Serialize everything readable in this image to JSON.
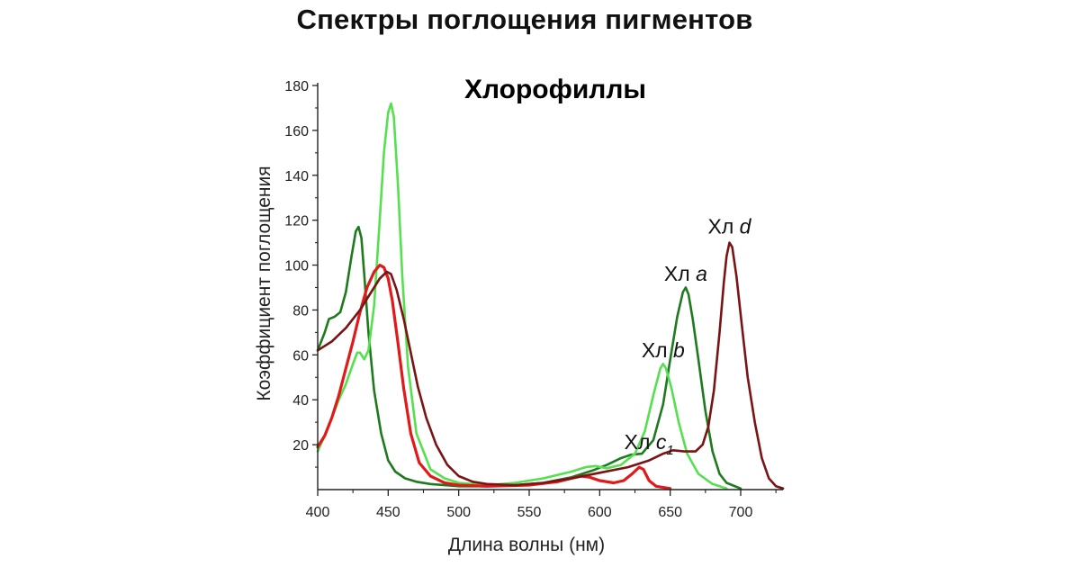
{
  "page_title": "Спектры поглощения пигментов",
  "chart_data": {
    "type": "line",
    "title": "Хлорофиллы",
    "xlabel": "Длина волны (нм)",
    "ylabel": "Коэффициент поглощения",
    "xlim": [
      400,
      730
    ],
    "ylim": [
      0,
      180
    ],
    "xticks": [
      "400",
      "450",
      "500",
      "550",
      "600",
      "650",
      "700"
    ],
    "yticks": [
      "20",
      "40",
      "60",
      "80",
      "100",
      "120",
      "140",
      "160",
      "180"
    ],
    "grid": false,
    "series": [
      {
        "name": "Хл a",
        "color": "#1e7a1e",
        "points": [
          [
            400,
            62
          ],
          [
            405,
            70
          ],
          [
            408,
            76
          ],
          [
            412,
            77
          ],
          [
            416,
            79
          ],
          [
            420,
            88
          ],
          [
            424,
            104
          ],
          [
            427,
            115
          ],
          [
            429,
            117
          ],
          [
            431,
            112
          ],
          [
            433,
            96
          ],
          [
            436,
            70
          ],
          [
            440,
            44
          ],
          [
            445,
            25
          ],
          [
            450,
            13
          ],
          [
            455,
            8
          ],
          [
            462,
            5
          ],
          [
            470,
            3.5
          ],
          [
            480,
            2.5
          ],
          [
            500,
            1.5
          ],
          [
            520,
            1.5
          ],
          [
            540,
            2
          ],
          [
            560,
            3
          ],
          [
            580,
            5.5
          ],
          [
            595,
            8.5
          ],
          [
            605,
            11
          ],
          [
            615,
            14
          ],
          [
            622,
            15.5
          ],
          [
            630,
            16
          ],
          [
            638,
            22
          ],
          [
            645,
            38
          ],
          [
            650,
            58
          ],
          [
            655,
            77
          ],
          [
            659,
            88
          ],
          [
            661,
            90
          ],
          [
            663,
            87
          ],
          [
            666,
            76
          ],
          [
            670,
            58
          ],
          [
            675,
            35
          ],
          [
            680,
            17
          ],
          [
            685,
            7
          ],
          [
            690,
            3
          ],
          [
            700,
            0.5
          ]
        ]
      },
      {
        "name": "Хл b",
        "color": "#55e050",
        "points": [
          [
            400,
            17
          ],
          [
            405,
            24
          ],
          [
            410,
            32
          ],
          [
            415,
            40
          ],
          [
            420,
            47
          ],
          [
            425,
            56
          ],
          [
            428,
            61
          ],
          [
            430,
            61
          ],
          [
            433,
            58
          ],
          [
            436,
            62
          ],
          [
            440,
            82
          ],
          [
            444,
            120
          ],
          [
            447,
            150
          ],
          [
            450,
            168
          ],
          [
            452,
            172
          ],
          [
            454,
            166
          ],
          [
            457,
            135
          ],
          [
            460,
            95
          ],
          [
            464,
            55
          ],
          [
            470,
            25
          ],
          [
            480,
            9
          ],
          [
            490,
            5
          ],
          [
            500,
            3
          ],
          [
            520,
            2
          ],
          [
            540,
            3
          ],
          [
            560,
            5
          ],
          [
            580,
            8
          ],
          [
            590,
            10
          ],
          [
            597,
            10.5
          ],
          [
            605,
            9.5
          ],
          [
            615,
            11
          ],
          [
            625,
            16
          ],
          [
            632,
            26
          ],
          [
            638,
            42
          ],
          [
            643,
            54
          ],
          [
            645,
            56
          ],
          [
            647,
            54
          ],
          [
            651,
            45
          ],
          [
            656,
            30
          ],
          [
            662,
            16
          ],
          [
            670,
            7
          ],
          [
            680,
            2.5
          ],
          [
            690,
            0.5
          ]
        ]
      },
      {
        "name": "Хл c1",
        "color": "#e01a1a",
        "points": [
          [
            400,
            19
          ],
          [
            405,
            24
          ],
          [
            410,
            32
          ],
          [
            415,
            42
          ],
          [
            420,
            54
          ],
          [
            425,
            66
          ],
          [
            430,
            79
          ],
          [
            435,
            90
          ],
          [
            440,
            97
          ],
          [
            444,
            100
          ],
          [
            447,
            99
          ],
          [
            450,
            94
          ],
          [
            453,
            84
          ],
          [
            457,
            65
          ],
          [
            461,
            45
          ],
          [
            466,
            25
          ],
          [
            472,
            12
          ],
          [
            480,
            6
          ],
          [
            490,
            3
          ],
          [
            500,
            2
          ],
          [
            520,
            1.5
          ],
          [
            550,
            2
          ],
          [
            570,
            3.5
          ],
          [
            580,
            5
          ],
          [
            587,
            6
          ],
          [
            593,
            5.5
          ],
          [
            600,
            4
          ],
          [
            610,
            3
          ],
          [
            617,
            4
          ],
          [
            623,
            7
          ],
          [
            628,
            10
          ],
          [
            631,
            9
          ],
          [
            635,
            4
          ],
          [
            640,
            1.5
          ],
          [
            650,
            0.5
          ]
        ]
      },
      {
        "name": "Хл d",
        "color": "#7a1414",
        "points": [
          [
            400,
            62
          ],
          [
            410,
            66
          ],
          [
            420,
            72
          ],
          [
            430,
            80
          ],
          [
            438,
            88
          ],
          [
            444,
            94
          ],
          [
            449,
            97
          ],
          [
            452,
            96
          ],
          [
            456,
            89
          ],
          [
            461,
            76
          ],
          [
            466,
            61
          ],
          [
            471,
            46
          ],
          [
            477,
            32
          ],
          [
            484,
            20
          ],
          [
            492,
            11
          ],
          [
            500,
            6
          ],
          [
            510,
            3.5
          ],
          [
            520,
            2.5
          ],
          [
            540,
            2
          ],
          [
            560,
            3
          ],
          [
            580,
            5
          ],
          [
            600,
            7.5
          ],
          [
            620,
            10
          ],
          [
            635,
            13
          ],
          [
            645,
            16
          ],
          [
            652,
            17.5
          ],
          [
            660,
            17
          ],
          [
            668,
            17
          ],
          [
            673,
            20
          ],
          [
            677,
            28
          ],
          [
            681,
            44
          ],
          [
            685,
            70
          ],
          [
            688,
            92
          ],
          [
            690,
            104
          ],
          [
            692,
            110
          ],
          [
            694,
            108
          ],
          [
            697,
            95
          ],
          [
            701,
            72
          ],
          [
            705,
            50
          ],
          [
            710,
            30
          ],
          [
            715,
            14
          ],
          [
            720,
            5
          ],
          [
            725,
            1.5
          ],
          [
            730,
            0.5
          ]
        ]
      }
    ],
    "annotations": [
      {
        "series": "Хл a",
        "prefix": "Хл ",
        "letter": "a",
        "sub": "",
        "x": 661,
        "y": 93
      },
      {
        "series": "Хл b",
        "prefix": "Хл ",
        "letter": "b",
        "sub": "",
        "x": 645,
        "y": 59
      },
      {
        "series": "Хл c1",
        "prefix": "Хл ",
        "letter": "c",
        "sub": "1",
        "x": 635,
        "y": 18
      },
      {
        "series": "Хл d",
        "prefix": "Хл ",
        "letter": "d",
        "sub": "",
        "x": 692,
        "y": 114
      }
    ]
  }
}
